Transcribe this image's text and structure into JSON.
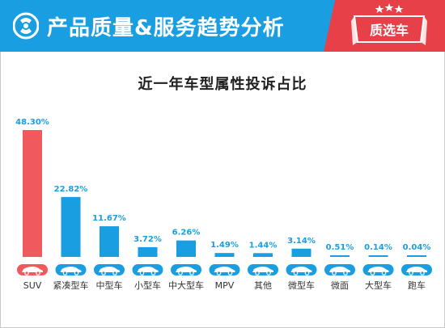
{
  "header": {
    "title": "产品质量&服务趋势分析",
    "brand_label": "质选车"
  },
  "colors": {
    "header_bg": "#1a9ee2",
    "badge_bg": "#e84048",
    "bar_primary": "#f05a5e",
    "bar_secondary": "#1a9ee2",
    "label_color": "#1a9ee2"
  },
  "icons": [
    "logo-icon",
    "car-icon",
    "star-icon"
  ],
  "chart_data": {
    "type": "bar",
    "title": "近一年车型属性投诉占比",
    "categories": [
      "SUV",
      "紧凑型车",
      "中型车",
      "小型车",
      "中大型车",
      "MPV",
      "其他",
      "微型车",
      "微面",
      "大型车",
      "跑车"
    ],
    "values": [
      48.3,
      22.82,
      11.67,
      3.72,
      6.26,
      1.49,
      1.44,
      3.14,
      0.51,
      0.14,
      0.04
    ],
    "value_labels": [
      "48.30%",
      "22.82%",
      "11.67%",
      "3.72%",
      "6.26%",
      "1.49%",
      "1.44%",
      "3.14%",
      "0.51%",
      "0.14%",
      "0.04%"
    ],
    "ylim": [
      0,
      48.3
    ],
    "grid": false,
    "legend": "none"
  }
}
